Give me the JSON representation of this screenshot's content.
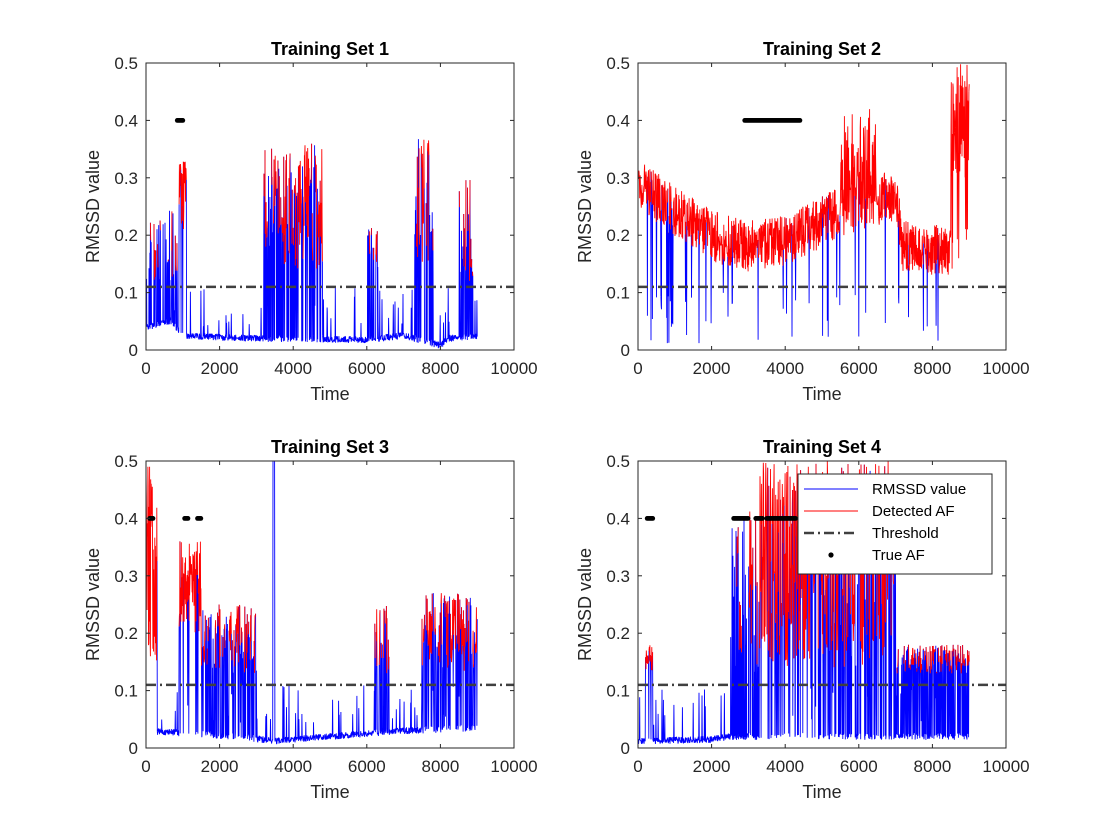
{
  "figure": {
    "background": "#ffffff"
  },
  "styles": {
    "rmssd_color": "#0000ff",
    "af_color": "#ff0000",
    "threshold_color": "#404040",
    "true_af_color": "#000000",
    "axis_color": "#262626"
  },
  "legend": {
    "entries": [
      {
        "label": "RMSSD value",
        "kind": "line",
        "color": "#0000ff"
      },
      {
        "label": "Detected AF",
        "kind": "line",
        "color": "#ff0000"
      },
      {
        "label": "Threshold",
        "kind": "dashdot",
        "color": "#404040"
      },
      {
        "label": "True AF",
        "kind": "dot",
        "color": "#000000"
      }
    ]
  },
  "chart_data": [
    {
      "type": "line",
      "title": "Training Set 1",
      "xlabel": "Time",
      "ylabel": "RMSSD value",
      "xlim": [
        0,
        10000
      ],
      "ylim": [
        0,
        0.5
      ],
      "xticks": [
        "0",
        "2000",
        "4000",
        "6000",
        "8000",
        "10000"
      ],
      "yticks": [
        "0",
        "0.1",
        "0.2",
        "0.3",
        "0.4",
        "0.5"
      ],
      "threshold": 0.11,
      "n_points": 9000,
      "baseline_segments": [
        [
          0,
          0.04
        ],
        [
          700,
          0.05
        ],
        [
          1000,
          0.025
        ],
        [
          3000,
          0.02
        ],
        [
          6000,
          0.018
        ],
        [
          7000,
          0.025
        ],
        [
          8000,
          0.008
        ],
        [
          8200,
          0.02
        ],
        [
          9000,
          0.025
        ]
      ],
      "af_bursts": [
        [
          0,
          900,
          0.12,
          0.25,
          0.3
        ],
        [
          900,
          1100,
          0.2,
          0.33,
          0.9
        ],
        [
          3200,
          4800,
          0.14,
          0.36,
          0.6
        ],
        [
          6000,
          6300,
          0.13,
          0.22,
          0.3
        ],
        [
          7300,
          7800,
          0.15,
          0.38,
          0.5
        ],
        [
          8500,
          8900,
          0.12,
          0.3,
          0.4
        ]
      ],
      "true_af": [
        [
          850,
          1000
        ]
      ],
      "legend": false
    },
    {
      "type": "line",
      "title": "Training Set 2",
      "xlabel": "Time",
      "ylabel": "RMSSD value",
      "xlim": [
        0,
        10000
      ],
      "ylim": [
        0,
        0.5
      ],
      "xticks": [
        "0",
        "2000",
        "4000",
        "6000",
        "8000",
        "10000"
      ],
      "yticks": [
        "0",
        "0.1",
        "0.2",
        "0.3",
        "0.4",
        "0.5"
      ],
      "threshold": 0.11,
      "n_points": 9000,
      "baseline_segments": [
        [
          0,
          0.29
        ],
        [
          1000,
          0.24
        ],
        [
          2000,
          0.2
        ],
        [
          2900,
          0.18
        ],
        [
          4000,
          0.19
        ],
        [
          5500,
          0.24
        ],
        [
          7000,
          0.27
        ],
        [
          7200,
          0.18
        ],
        [
          9000,
          0.17
        ]
      ],
      "af_bursts": [
        [
          5500,
          6500,
          0.25,
          0.42,
          0.6
        ],
        [
          8500,
          9000,
          0.3,
          0.5,
          0.8
        ]
      ],
      "true_af": [
        [
          2900,
          4400
        ]
      ],
      "legend": false
    },
    {
      "type": "line",
      "title": "Training Set 3",
      "xlabel": "Time",
      "ylabel": "RMSSD value",
      "xlim": [
        0,
        10000
      ],
      "ylim": [
        0,
        0.5
      ],
      "xticks": [
        "0",
        "2000",
        "4000",
        "6000",
        "8000",
        "10000"
      ],
      "yticks": [
        "0",
        "0.1",
        "0.2",
        "0.3",
        "0.4",
        "0.5"
      ],
      "threshold": 0.11,
      "n_points": 9000,
      "baseline_segments": [
        [
          0,
          0.03
        ],
        [
          2500,
          0.02
        ],
        [
          3500,
          0.012
        ],
        [
          5000,
          0.02
        ],
        [
          7000,
          0.03
        ],
        [
          9000,
          0.035
        ]
      ],
      "af_bursts": [
        [
          0,
          300,
          0.15,
          0.5,
          1.0
        ],
        [
          900,
          1500,
          0.2,
          0.36,
          0.9
        ],
        [
          1500,
          3000,
          0.13,
          0.25,
          0.6
        ],
        [
          3450,
          3500,
          0.5,
          0.5,
          1.0
        ],
        [
          6200,
          6600,
          0.13,
          0.25,
          0.5
        ],
        [
          7500,
          9000,
          0.13,
          0.27,
          0.7
        ]
      ],
      "true_af": [
        [
          100,
          200
        ],
        [
          1050,
          1150
        ],
        [
          1400,
          1500
        ]
      ],
      "legend": false
    },
    {
      "type": "line",
      "title": "Training Set 4",
      "xlabel": "Time",
      "ylabel": "RMSSD value",
      "xlim": [
        0,
        10000
      ],
      "ylim": [
        0,
        0.5
      ],
      "xticks": [
        "0",
        "2000",
        "4000",
        "6000",
        "8000",
        "10000"
      ],
      "yticks": [
        "0",
        "0.1",
        "0.2",
        "0.3",
        "0.4",
        "0.5"
      ],
      "threshold": 0.11,
      "n_points": 9000,
      "baseline_segments": [
        [
          0,
          0.012
        ],
        [
          2000,
          0.015
        ],
        [
          2500,
          0.02
        ],
        [
          4000,
          0.02
        ],
        [
          9000,
          0.02
        ]
      ],
      "af_bursts": [
        [
          200,
          400,
          0.13,
          0.19,
          0.8
        ],
        [
          2500,
          3300,
          0.13,
          0.42,
          0.5
        ],
        [
          3300,
          4800,
          0.14,
          0.5,
          0.8
        ],
        [
          4800,
          7000,
          0.14,
          0.5,
          0.7
        ],
        [
          7000,
          9000,
          0.13,
          0.18,
          0.6
        ]
      ],
      "true_af": [
        [
          250,
          400
        ],
        [
          2600,
          3000
        ],
        [
          3200,
          3400
        ],
        [
          3500,
          4300
        ]
      ],
      "legend": true
    }
  ]
}
